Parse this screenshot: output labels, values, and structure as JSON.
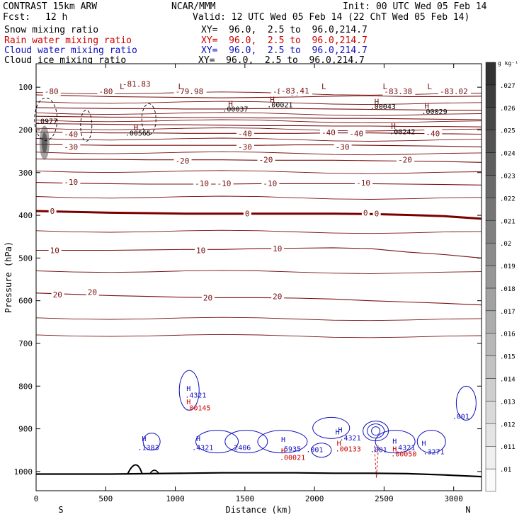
{
  "header": {
    "model": "CONTRAST 15km ARW",
    "center": "NCAR/MMM",
    "init": "Init: 00 UTC Wed 05 Feb 14",
    "fcst_label": "Fcst:",
    "fcst_value": "12 h",
    "valid": "Valid: 12 UTC Wed 05 Feb 14 (22 ChT Wed 05 Feb 14)",
    "fields": [
      {
        "name": "Snow mixing ratio",
        "xy": "XY=  96.0,  2.5 to  96.0,214.7",
        "color": "#000000"
      },
      {
        "name": "Rain water mixing ratio",
        "xy": "XY=  96.0,  2.5 to  96.0,214.7",
        "color": "#cc0000"
      },
      {
        "name": "Cloud water mixing ratio",
        "xy": "XY=  96.0,  2.5 to  96.0,214.7",
        "color": "#1010c0"
      },
      {
        "name": "Cloud ice mixing ratio",
        "xy": "XY=  96.0,  2.5 to  96.0,214.7",
        "color": "#000000"
      }
    ]
  },
  "colors": {
    "temperature_contour": "#7a1010",
    "zero_contour": "#7a0000",
    "rain": "#cc0000",
    "cloud_water": "#1010c0",
    "terrain": "#000000"
  },
  "chart_data": {
    "type": "contour",
    "xlabel": "Distance (km)",
    "ylabel": "Pressure (hPa)",
    "xlim": [
      0,
      3200
    ],
    "ylim": [
      1045,
      45
    ],
    "x_ticks": [
      0,
      500,
      1000,
      1500,
      2000,
      2500,
      3000
    ],
    "y_ticks": [
      100,
      200,
      300,
      400,
      500,
      600,
      700,
      800,
      900,
      1000
    ],
    "direction_left": "S",
    "direction_right": "N",
    "colorbar": {
      "unit": "g kg⁻¹",
      "levels": [
        ".01",
        ".011",
        ".012",
        ".013",
        ".014",
        ".015",
        ".016",
        ".017",
        ".018",
        ".019",
        ".02",
        ".021",
        ".022",
        ".023",
        ".024",
        ".025",
        ".026",
        ".027"
      ]
    },
    "temperature_contours": [
      {
        "value": -80,
        "y": [
          118,
          120,
          122,
          123,
          124,
          125,
          124,
          123,
          121,
          120,
          122,
          122,
          121
        ]
      },
      {
        "value": -70,
        "y": [
          148,
          149,
          150,
          150,
          151,
          151,
          150,
          150,
          151,
          152,
          153,
          154,
          154
        ]
      },
      {
        "value": -60,
        "y": [
          168,
          169,
          170,
          170,
          171,
          171,
          172,
          172,
          173,
          173,
          174,
          175,
          176
        ]
      },
      {
        "value": -50,
        "y": [
          185,
          186,
          187,
          188,
          188,
          189,
          190,
          190,
          191,
          191,
          192,
          192,
          193
        ]
      },
      {
        "value": -40,
        "y": [
          205,
          206,
          207,
          207,
          208,
          208,
          208,
          208,
          207,
          207,
          208,
          209,
          210
        ]
      },
      {
        "value": -30,
        "y": [
          234,
          235,
          236,
          236,
          236,
          236,
          236,
          235,
          235,
          236,
          237,
          238,
          240
        ]
      },
      {
        "value": -20,
        "y": [
          268,
          269,
          269,
          270,
          270,
          270,
          271,
          271,
          271,
          272,
          273,
          274,
          276
        ]
      },
      {
        "value": -10,
        "y": [
          323,
          325,
          326,
          327,
          327,
          327,
          326,
          326,
          326,
          326,
          327,
          328,
          329
        ]
      },
      {
        "value": 0,
        "y": [
          390,
          392,
          394,
          395,
          396,
          396,
          396,
          396,
          396,
          397,
          399,
          402,
          408
        ]
      },
      {
        "value": 10,
        "y": [
          482,
          482,
          482,
          481,
          480,
          480,
          478,
          477,
          476,
          478,
          486,
          492,
          500
        ]
      },
      {
        "value": 20,
        "y": [
          582,
          585,
          588,
          590,
          592,
          593,
          593,
          594,
          596,
          600,
          603,
          606,
          610
        ]
      }
    ],
    "contour_x_km": [
      0,
      267,
      533,
      800,
      1067,
      1333,
      1600,
      1867,
      2133,
      2400,
      2667,
      2933,
      3200
    ],
    "contour_labels": [
      "-80",
      "-80",
      "-80",
      "-80",
      "-83.41",
      "-83.38",
      "-83.02",
      "-81.83",
      "-79.98",
      "-40",
      "-40",
      "-40",
      "-40",
      "-40",
      "-30",
      "-30",
      "-30",
      "-20",
      "-20",
      "-20",
      "-10",
      "-10",
      "-10",
      "-10",
      "-10",
      "0",
      "0",
      "0",
      "0",
      "10",
      "10",
      "10",
      "20",
      "20",
      "20",
      "20"
    ],
    "extrema_labels": [
      {
        "kind": "L",
        "x": 600,
        "p": 100
      },
      {
        "kind": "L",
        "x": 1020,
        "p": 100
      },
      {
        "kind": "L",
        "x": 2050,
        "p": 100
      },
      {
        "kind": "L",
        "x": 2490,
        "p": 100
      },
      {
        "kind": "L",
        "x": 2810,
        "p": 100
      },
      {
        "kind": "H",
        "x": 1380,
        "p": 140
      },
      {
        "kind": "H",
        "x": 1680,
        "p": 130
      },
      {
        "kind": "H",
        "x": 2430,
        "p": 135
      },
      {
        "kind": "H",
        "x": 2790,
        "p": 145
      },
      {
        "kind": "H",
        "x": 700,
        "p": 196
      },
      {
        "kind": "H",
        "x": 2550,
        "p": 193
      }
    ],
    "extrema_values": [
      ".00037",
      ".00021",
      ".00043",
      ".00029",
      ".00565",
      ".00242",
      ".0977"
    ],
    "cloud_water_maxima": [
      ".4321",
      ".1383",
      ".4321",
      ".2406",
      ".5935",
      ".001",
      ".4321",
      ".001",
      ".4321",
      ".3271",
      ".001"
    ],
    "rain_maxima": [
      ".00145",
      ".00021",
      ".00133",
      ".00050"
    ],
    "terrain_pressure": [
      1006,
      1006,
      1006,
      1005,
      1004,
      1003,
      1003,
      1003,
      1004,
      1004,
      1005,
      1008,
      1012
    ]
  }
}
